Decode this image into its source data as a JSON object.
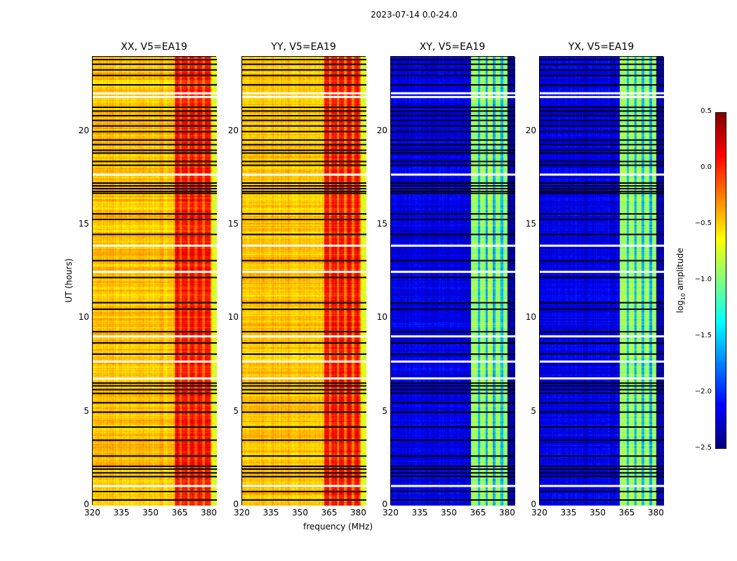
{
  "suptitle": "2023-07-14 0.0-24.0",
  "chart_data": {
    "type": "heatmap",
    "xlabel": "frequency (MHz)",
    "ylabel": "UT (hours)",
    "xlim": [
      320,
      384
    ],
    "ylim": [
      0,
      24
    ],
    "xticks": [
      320,
      335,
      350,
      365,
      380
    ],
    "yticks": [
      0,
      5,
      10,
      15,
      20
    ],
    "colorbar": {
      "label": "log10 amplitude",
      "label_main": "log",
      "label_sub": "10",
      "label_end": " amplitude",
      "range": [
        -2.5,
        0.5
      ],
      "ticks": [
        "0.5",
        "0.0",
        "−0.5",
        "−1.0",
        "−1.5",
        "−2.0",
        "−2.5"
      ],
      "tick_values": [
        0.5,
        0,
        -0.5,
        -1,
        -1.5,
        -2,
        -2.5
      ],
      "colormap": "jet"
    },
    "flagged_hours": [
      0.3,
      0.75,
      1.55,
      1.75,
      1.95,
      2.1,
      2.65,
      3.5,
      4.2,
      5.0,
      5.5,
      6.0,
      6.2,
      6.4,
      6.55,
      8.1,
      8.7,
      9.3,
      10.5,
      10.85,
      12.2,
      13.1,
      14.5,
      15.3,
      15.6,
      16.7,
      16.8,
      16.95,
      17.1,
      17.25,
      18.2,
      18.4,
      18.85,
      19.0,
      19.3,
      19.55,
      20.0,
      20.3,
      20.6,
      20.85,
      21.1,
      21.3,
      22.5,
      23.0,
      23.3,
      23.6,
      23.85
    ],
    "blank_hours": [
      1.05,
      6.8,
      7.7,
      9.05,
      12.5,
      13.9,
      17.7,
      21.85,
      22.05
    ],
    "panels": [
      {
        "title": "XX, V5=EA19",
        "segments": [
          {
            "f": [
              320,
              362
            ],
            "value": -0.45
          },
          {
            "f": [
              362,
              381
            ],
            "value": 0.1
          },
          {
            "f": [
              381,
              384
            ],
            "value": -0.7
          }
        ]
      },
      {
        "title": "YY, V5=EA19",
        "segments": [
          {
            "f": [
              320,
              362
            ],
            "value": -0.45
          },
          {
            "f": [
              362,
              381
            ],
            "value": 0.1
          },
          {
            "f": [
              381,
              384
            ],
            "value": -0.7
          }
        ]
      },
      {
        "title": "XY, V5=EA19",
        "segments": [
          {
            "f": [
              320,
              361
            ],
            "value": -2.2
          },
          {
            "f": [
              361,
              380
            ],
            "value": -0.9
          },
          {
            "f": [
              380,
              384
            ],
            "value": -2.4
          }
        ]
      },
      {
        "title": "YX, V5=EA19",
        "segments": [
          {
            "f": [
              320,
              361
            ],
            "value": -2.2
          },
          {
            "f": [
              361,
              380
            ],
            "value": -0.9
          },
          {
            "f": [
              380,
              384
            ],
            "value": -2.4
          }
        ]
      }
    ]
  }
}
